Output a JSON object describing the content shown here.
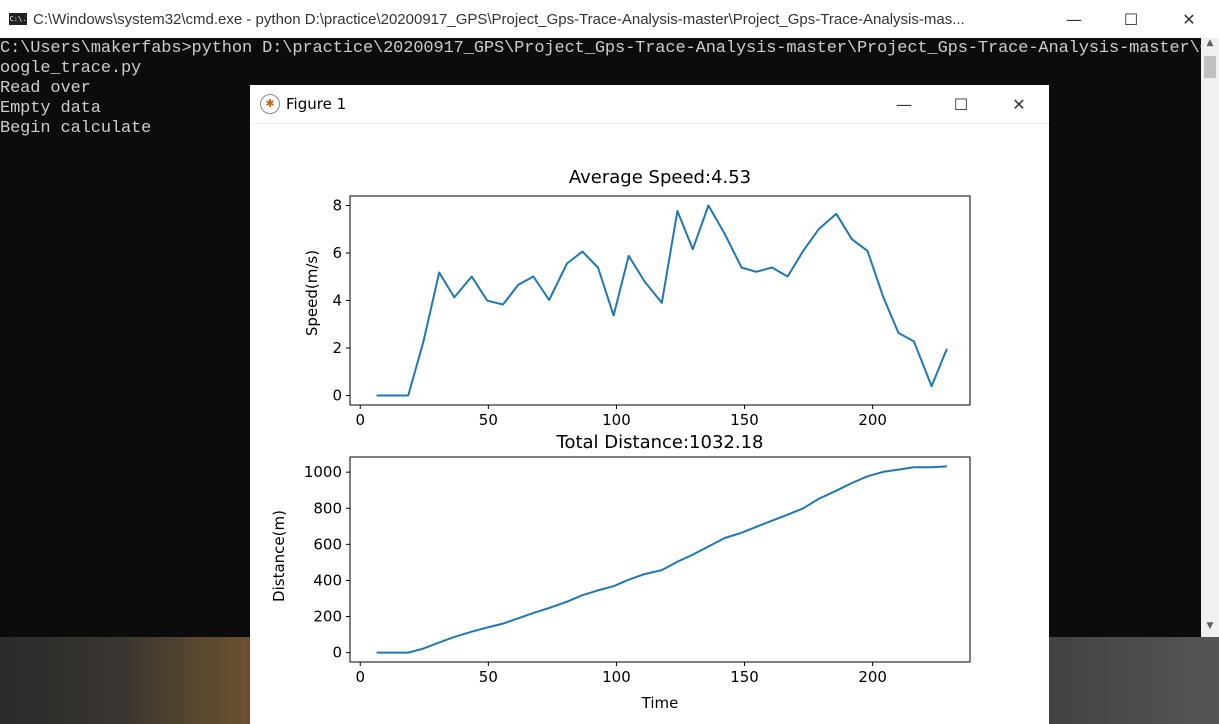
{
  "cmd_window": {
    "title": "C:\\Windows\\system32\\cmd.exe - python  D:\\practice\\20200917_GPS\\Project_Gps-Trace-Analysis-master\\Project_Gps-Trace-Analysis-mas...",
    "icon": "C:\\.",
    "lines": [
      "C:\\Users\\makerfabs>python D:\\practice\\20200917_GPS\\Project_Gps-Trace-Analysis-master\\Project_Gps-Trace-Analysis-master\\G",
      "oogle_trace.py",
      "Read over",
      "Empty data",
      "Begin calculate"
    ],
    "controls": {
      "minimize": "—",
      "maximize": "☐",
      "close": "✕"
    }
  },
  "figure_window": {
    "title": "Figure 1",
    "controls": {
      "minimize": "—",
      "maximize": "☐",
      "close": "✕"
    }
  },
  "chart_data": [
    {
      "type": "line",
      "title": "Average Speed:4.53",
      "xlabel": "",
      "ylabel": "Speed(m/s)",
      "xticks": [
        0,
        50,
        100,
        150,
        200
      ],
      "yticks": [
        0,
        2,
        4,
        6,
        8
      ],
      "xlim": [
        -4,
        238
      ],
      "ylim": [
        -0.4,
        8.4
      ],
      "color": "#1f77b4",
      "x": [
        6.4,
        12.6,
        18.7,
        24.6,
        30.8,
        36.7,
        43.5,
        49.6,
        55.7,
        61.7,
        67.6,
        73.7,
        80.7,
        86.7,
        92.8,
        98.9,
        104.8,
        111,
        117.7,
        123.8,
        129.8,
        135.9,
        142.3,
        148.8,
        154.6,
        160.7,
        166.8,
        172.9,
        178.9,
        185.8,
        191.9,
        198,
        204.2,
        210.1,
        216.1,
        223,
        229
      ],
      "y": [
        0,
        0,
        0,
        2.25,
        5.18,
        4.13,
        5.01,
        3.99,
        3.83,
        4.66,
        5.01,
        4.02,
        5.56,
        6.06,
        5.39,
        3.37,
        5.88,
        4.8,
        3.9,
        7.77,
        6.16,
        8.0,
        6.8,
        5.39,
        5.21,
        5.39,
        5.01,
        6.09,
        7.0,
        7.65,
        6.58,
        6.09,
        4.13,
        2.63,
        2.28,
        0.39,
        1.97
      ]
    },
    {
      "type": "line",
      "title": "Total Distance:1032.18",
      "xlabel": "Time",
      "ylabel": "Distance(m)",
      "xticks": [
        0,
        50,
        100,
        150,
        200
      ],
      "yticks": [
        0,
        200,
        400,
        600,
        800,
        1000
      ],
      "xlim": [
        -4,
        238
      ],
      "ylim": [
        -52,
        1084
      ],
      "color": "#1f77b4",
      "x": [
        6.4,
        12.6,
        18.7,
        24.6,
        30.8,
        36.7,
        43.5,
        49.6,
        55.7,
        61.7,
        67.6,
        73.7,
        80.7,
        86.7,
        92.8,
        98.9,
        104.8,
        111,
        117.7,
        123.8,
        129.8,
        135.9,
        142.3,
        148.8,
        154.6,
        160.7,
        166.8,
        172.9,
        178.9,
        185.8,
        191.9,
        198,
        204.2,
        210.1,
        216.1,
        223,
        229
      ],
      "y": [
        0,
        0,
        0,
        22,
        56,
        87,
        116,
        139,
        161,
        190,
        220,
        247,
        282,
        318,
        345,
        368,
        404,
        435,
        457,
        504,
        543,
        588,
        635,
        664,
        697,
        731,
        764,
        800,
        852,
        897,
        940,
        977,
        1002,
        1014,
        1027,
        1027,
        1032.18
      ]
    }
  ]
}
